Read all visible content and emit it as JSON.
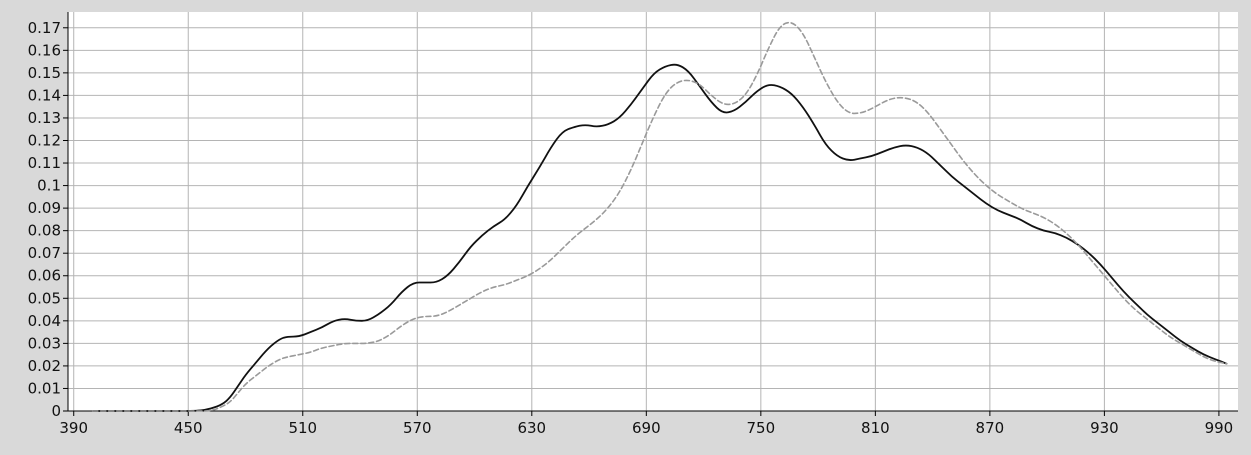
{
  "chart_data": {
    "type": "line",
    "title": "",
    "xlabel": "",
    "ylabel": "",
    "xlim": [
      387,
      1000
    ],
    "ylim": [
      0,
      0.177
    ],
    "x_ticks": [
      390,
      450,
      510,
      570,
      630,
      690,
      750,
      810,
      870,
      930,
      990
    ],
    "x_tick_labels": [
      "390",
      "450",
      "510",
      "570",
      "630",
      "690",
      "750",
      "810",
      "870",
      "930",
      "990"
    ],
    "y_ticks": [
      0,
      0.01,
      0.02,
      0.03,
      0.04,
      0.05,
      0.06,
      0.07,
      0.08,
      0.09,
      0.1,
      0.11,
      0.12,
      0.13,
      0.14,
      0.15,
      0.16,
      0.17
    ],
    "y_tick_labels": [
      "0",
      "0.01",
      "0.02",
      "0.03",
      "0.04",
      "0.05",
      "0.06",
      "0.07",
      "0.08",
      "0.09",
      "0.1",
      "0.11",
      "0.12",
      "0.13",
      "0.14",
      "0.15",
      "0.16",
      "0.17"
    ],
    "grid": true,
    "legend": "none",
    "series": [
      {
        "color": "#111111",
        "style": "solid",
        "x": [
          400,
          420,
          440,
          455,
          462,
          468,
          472,
          476,
          480,
          486,
          492,
          498,
          502,
          508,
          514,
          520,
          526,
          532,
          538,
          544,
          550,
          556,
          562,
          568,
          574,
          580,
          586,
          592,
          598,
          604,
          610,
          616,
          622,
          628,
          634,
          640,
          646,
          652,
          658,
          664,
          670,
          676,
          682,
          688,
          694,
          700,
          706,
          712,
          718,
          724,
          730,
          736,
          742,
          748,
          754,
          760,
          766,
          772,
          778,
          784,
          790,
          796,
          802,
          808,
          814,
          820,
          826,
          832,
          838,
          844,
          850,
          856,
          862,
          868,
          874,
          880,
          886,
          892,
          898,
          904,
          910,
          916,
          922,
          928,
          934,
          940,
          946,
          952,
          958,
          964,
          970,
          976,
          982,
          988,
          994
        ],
        "values": [
          0.0,
          0.0,
          0.0,
          0.0,
          0.001,
          0.003,
          0.006,
          0.011,
          0.016,
          0.022,
          0.028,
          0.032,
          0.033,
          0.033,
          0.035,
          0.037,
          0.04,
          0.041,
          0.04,
          0.04,
          0.043,
          0.047,
          0.053,
          0.057,
          0.057,
          0.057,
          0.06,
          0.066,
          0.073,
          0.078,
          0.082,
          0.085,
          0.091,
          0.1,
          0.108,
          0.117,
          0.124,
          0.126,
          0.127,
          0.126,
          0.127,
          0.13,
          0.136,
          0.143,
          0.15,
          0.153,
          0.154,
          0.151,
          0.144,
          0.137,
          0.132,
          0.133,
          0.137,
          0.142,
          0.145,
          0.144,
          0.141,
          0.135,
          0.127,
          0.118,
          0.113,
          0.111,
          0.112,
          0.113,
          0.115,
          0.117,
          0.118,
          0.117,
          0.114,
          0.109,
          0.104,
          0.1,
          0.096,
          0.092,
          0.089,
          0.087,
          0.085,
          0.082,
          0.08,
          0.079,
          0.077,
          0.074,
          0.07,
          0.065,
          0.059,
          0.053,
          0.048,
          0.043,
          0.039,
          0.035,
          0.031,
          0.028,
          0.025,
          0.023,
          0.021
        ]
      },
      {
        "color": "#9a9a9a",
        "style": "dashed",
        "x": [
          400,
          420,
          440,
          455,
          462,
          468,
          472,
          476,
          480,
          486,
          492,
          498,
          502,
          508,
          514,
          520,
          526,
          532,
          538,
          544,
          550,
          556,
          562,
          568,
          574,
          580,
          586,
          592,
          598,
          604,
          610,
          616,
          622,
          628,
          634,
          640,
          646,
          652,
          658,
          664,
          670,
          676,
          682,
          688,
          694,
          700,
          706,
          712,
          718,
          724,
          730,
          736,
          742,
          748,
          754,
          760,
          766,
          772,
          778,
          784,
          790,
          796,
          802,
          808,
          814,
          820,
          826,
          832,
          838,
          844,
          850,
          856,
          862,
          868,
          874,
          880,
          886,
          892,
          898,
          904,
          910,
          916,
          922,
          928,
          934,
          940,
          946,
          952,
          958,
          964,
          970,
          976,
          982,
          988,
          994
        ],
        "values": [
          0.0,
          0.0,
          0.0,
          0.0,
          0.0,
          0.002,
          0.004,
          0.008,
          0.012,
          0.016,
          0.02,
          0.023,
          0.024,
          0.025,
          0.026,
          0.028,
          0.029,
          0.03,
          0.03,
          0.03,
          0.031,
          0.034,
          0.038,
          0.041,
          0.042,
          0.042,
          0.044,
          0.047,
          0.05,
          0.053,
          0.055,
          0.056,
          0.058,
          0.06,
          0.063,
          0.067,
          0.072,
          0.077,
          0.081,
          0.085,
          0.09,
          0.097,
          0.107,
          0.119,
          0.131,
          0.141,
          0.146,
          0.147,
          0.145,
          0.14,
          0.136,
          0.136,
          0.14,
          0.149,
          0.161,
          0.171,
          0.173,
          0.168,
          0.157,
          0.146,
          0.137,
          0.132,
          0.132,
          0.134,
          0.137,
          0.139,
          0.139,
          0.137,
          0.132,
          0.125,
          0.118,
          0.111,
          0.105,
          0.1,
          0.096,
          0.093,
          0.09,
          0.088,
          0.086,
          0.083,
          0.079,
          0.074,
          0.068,
          0.062,
          0.056,
          0.05,
          0.045,
          0.041,
          0.037,
          0.033,
          0.03,
          0.027,
          0.024,
          0.022,
          0.021
        ]
      }
    ]
  }
}
